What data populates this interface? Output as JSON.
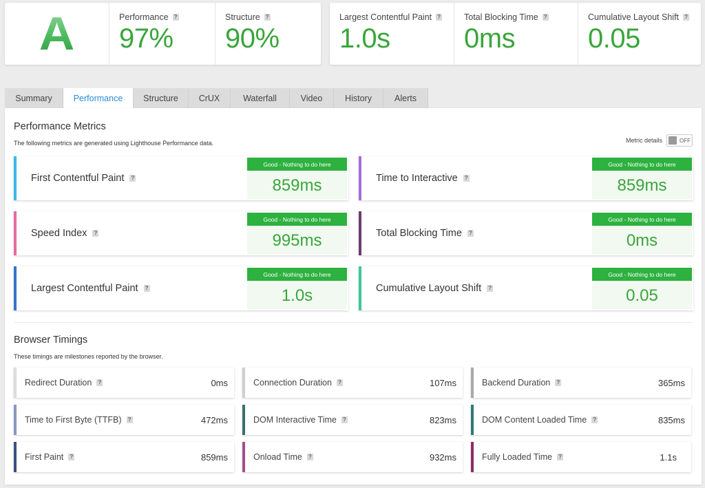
{
  "summary": {
    "grade": "A",
    "performance": {
      "label": "Performance",
      "value": "97%"
    },
    "structure": {
      "label": "Structure",
      "value": "90%"
    },
    "lcp": {
      "label": "Largest Contentful Paint",
      "value": "1.0s"
    },
    "tbt": {
      "label": "Total Blocking Time",
      "value": "0ms"
    },
    "cls": {
      "label": "Cumulative Layout Shift",
      "value": "0.05"
    }
  },
  "help_glyph": "?",
  "tabs": [
    "Summary",
    "Performance",
    "Structure",
    "CrUX",
    "Waterfall",
    "Video",
    "History",
    "Alerts"
  ],
  "active_tab": "Performance",
  "metrics_section": {
    "title": "Performance Metrics",
    "subtitle": "The following metrics are generated using Lighthouse Performance data.",
    "details_label": "Metric details",
    "toggle_state": "OFF"
  },
  "metrics": [
    {
      "name": "First Contentful Paint",
      "badge": "Good - Nothing to do here",
      "value": "859ms",
      "color": "#3cb8e8"
    },
    {
      "name": "Time to Interactive",
      "badge": "Good - Nothing to do here",
      "value": "859ms",
      "color": "#a66ed8"
    },
    {
      "name": "Speed Index",
      "badge": "Good - Nothing to do here",
      "value": "995ms",
      "color": "#e76aa0"
    },
    {
      "name": "Total Blocking Time",
      "badge": "Good - Nothing to do here",
      "value": "0ms",
      "color": "#6b3d6e"
    },
    {
      "name": "Largest Contentful Paint",
      "badge": "Good - Nothing to do here",
      "value": "1.0s",
      "color": "#3a72c8"
    },
    {
      "name": "Cumulative Layout Shift",
      "badge": "Good - Nothing to do here",
      "value": "0.05",
      "color": "#3fc79a"
    }
  ],
  "timings_section": {
    "title": "Browser Timings",
    "subtitle": "These timings are milestones reported by the browser."
  },
  "timings": [
    {
      "name": "Redirect Duration",
      "value": "0ms",
      "color": "#dddddd"
    },
    {
      "name": "Connection Duration",
      "value": "107ms",
      "color": "#cfcfcf"
    },
    {
      "name": "Backend Duration",
      "value": "365ms",
      "color": "#a9a9a9"
    },
    {
      "name": "Time to First Byte (TTFB)",
      "value": "472ms",
      "color": "#8a97c2"
    },
    {
      "name": "DOM Interactive Time",
      "value": "823ms",
      "color": "#3d6f6f"
    },
    {
      "name": "DOM Content Loaded Time",
      "value": "835ms",
      "color": "#2f7a74"
    },
    {
      "name": "First Paint",
      "value": "859ms",
      "color": "#3b4f80"
    },
    {
      "name": "Onload Time",
      "value": "932ms",
      "color": "#a34e8f"
    },
    {
      "name": "Fully Loaded Time",
      "value": "1.1s",
      "color": "#8d2b63"
    }
  ],
  "colors": {
    "good_green": "#3aa53b",
    "badge_green": "#2db13f",
    "active_tab": "#2b8ad6"
  }
}
